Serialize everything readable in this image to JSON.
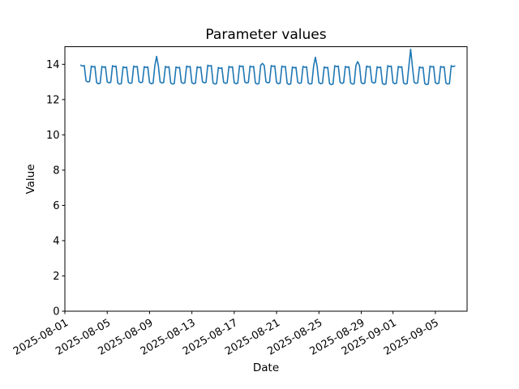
{
  "chart_data": {
    "type": "line",
    "title": "Parameter values",
    "xlabel": "Date",
    "ylabel": "Value",
    "line_color": "#1f77b4",
    "axis_color": "#000000",
    "background_color": "#ffffff",
    "grid": false,
    "legend": null,
    "markers": false,
    "ylim": [
      0,
      15
    ],
    "yticks": [
      0,
      2,
      4,
      6,
      8,
      10,
      12,
      14
    ],
    "xlim": [
      "2025-08-01T00:00:00Z",
      "2025-09-08T00:00:00Z"
    ],
    "xticks": [
      "2025-08-01",
      "2025-08-05",
      "2025-08-09",
      "2025-08-13",
      "2025-08-17",
      "2025-08-21",
      "2025-08-25",
      "2025-08-29",
      "2025-09-01",
      "2025-09-05"
    ],
    "x_tick_rotation_deg": 30,
    "description": "Daily square-wave oscillation between a high plateau (~13.9) and a low plateau (~12.9), with occasional taller spikes (Aug 9 ~14.45, Aug 19 ~14.05, Aug 24 ~14.4, Aug 28 ~14.15, Sep 2 ~14.85).",
    "intra_day_pattern": [
      {
        "hour": 12,
        "level": "high",
        "delta": 0,
        "spike_slot": false
      },
      {
        "hour": 16,
        "level": "high",
        "delta": -0.05,
        "spike_slot": true
      },
      {
        "hour": 20,
        "level": "high",
        "delta": -0.02,
        "spike_slot": false
      },
      {
        "hour": 24,
        "level": "low",
        "delta": 0.06,
        "spike_slot": false
      },
      {
        "hour": 28,
        "level": "low",
        "delta": 0,
        "spike_slot": false
      },
      {
        "hour": 32,
        "level": "low",
        "delta": 0.03,
        "spike_slot": false
      }
    ],
    "series": [
      {
        "name": "parameter-values",
        "days": [
          {
            "date": "2025-08-02",
            "high": 13.95,
            "low": 13.0
          },
          {
            "date": "2025-08-03",
            "high": 13.9,
            "low": 12.9
          },
          {
            "date": "2025-08-04",
            "high": 13.88,
            "low": 12.95
          },
          {
            "date": "2025-08-05",
            "high": 13.92,
            "low": 12.88
          },
          {
            "date": "2025-08-06",
            "high": 13.86,
            "low": 12.92
          },
          {
            "date": "2025-08-07",
            "high": 13.9,
            "low": 12.96
          },
          {
            "date": "2025-08-08",
            "high": 13.87,
            "low": 12.9
          },
          {
            "date": "2025-08-09",
            "high": 13.92,
            "low": 12.94,
            "spike": 14.45
          },
          {
            "date": "2025-08-10",
            "high": 13.88,
            "low": 12.88
          },
          {
            "date": "2025-08-11",
            "high": 13.85,
            "low": 12.92
          },
          {
            "date": "2025-08-12",
            "high": 13.9,
            "low": 12.9
          },
          {
            "date": "2025-08-13",
            "high": 13.86,
            "low": 12.95
          },
          {
            "date": "2025-08-14",
            "high": 13.95,
            "low": 12.88
          },
          {
            "date": "2025-08-15",
            "high": 13.82,
            "low": 12.92
          },
          {
            "date": "2025-08-16",
            "high": 13.88,
            "low": 12.9
          },
          {
            "date": "2025-08-17",
            "high": 13.92,
            "low": 12.94
          },
          {
            "date": "2025-08-18",
            "high": 13.9,
            "low": 12.88
          },
          {
            "date": "2025-08-19",
            "high": 13.95,
            "low": 12.95,
            "spike": 14.05
          },
          {
            "date": "2025-08-20",
            "high": 13.93,
            "low": 12.9
          },
          {
            "date": "2025-08-21",
            "high": 13.9,
            "low": 12.86
          },
          {
            "date": "2025-08-22",
            "high": 13.85,
            "low": 12.92
          },
          {
            "date": "2025-08-23",
            "high": 13.88,
            "low": 12.88
          },
          {
            "date": "2025-08-24",
            "high": 13.9,
            "low": 12.9,
            "spike": 14.4
          },
          {
            "date": "2025-08-25",
            "high": 13.85,
            "low": 12.85
          },
          {
            "date": "2025-08-26",
            "high": 13.92,
            "low": 12.92
          },
          {
            "date": "2025-08-27",
            "high": 13.88,
            "low": 12.88
          },
          {
            "date": "2025-08-28",
            "high": 13.95,
            "low": 12.9,
            "spike": 14.15
          },
          {
            "date": "2025-08-29",
            "high": 13.9,
            "low": 12.94
          },
          {
            "date": "2025-08-30",
            "high": 13.86,
            "low": 12.86
          },
          {
            "date": "2025-08-31",
            "high": 13.92,
            "low": 12.9
          },
          {
            "date": "2025-09-01",
            "high": 13.88,
            "low": 12.88
          },
          {
            "date": "2025-09-02",
            "high": 13.9,
            "low": 12.92,
            "spike": 14.85
          },
          {
            "date": "2025-09-03",
            "high": 13.85,
            "low": 12.85
          },
          {
            "date": "2025-09-04",
            "high": 13.9,
            "low": 12.9
          },
          {
            "date": "2025-09-05",
            "high": 13.88,
            "low": 12.88
          },
          {
            "date": "2025-09-06",
            "high": 13.92
          }
        ]
      }
    ]
  }
}
